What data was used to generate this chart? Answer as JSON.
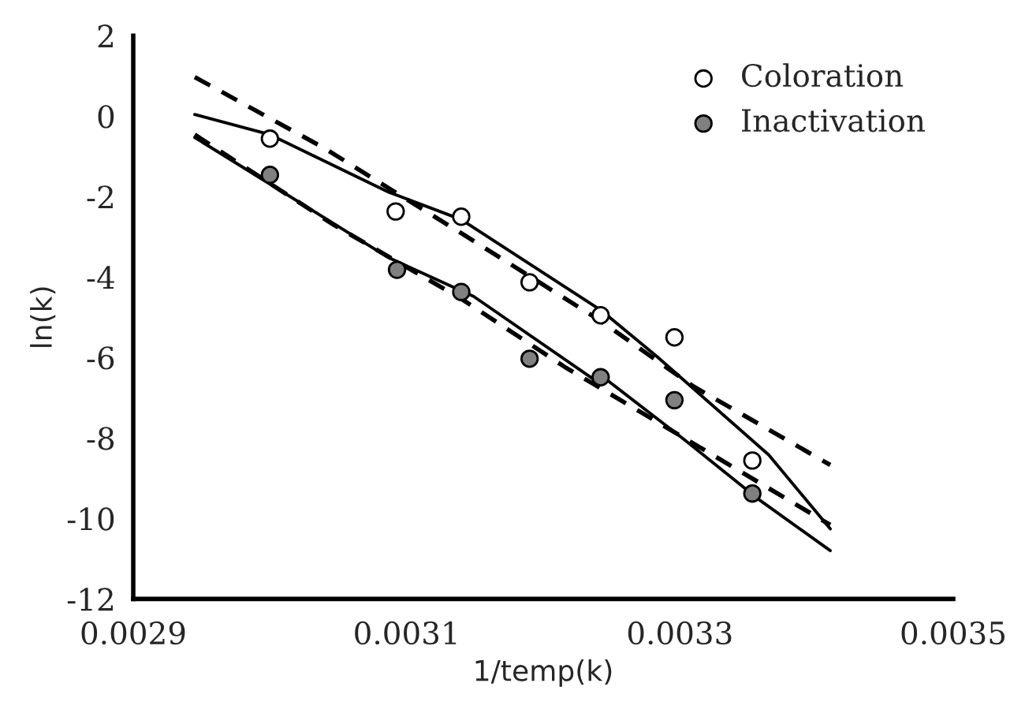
{
  "chart_data": {
    "type": "scatter",
    "xlabel": "1/temp(k)",
    "ylabel": "ln(k)",
    "xlim": [
      0.0029,
      0.0035
    ],
    "xticks": [
      {
        "value": 0.0029,
        "label": "0.0029"
      },
      {
        "value": 0.0031,
        "label": "0.0031"
      },
      {
        "value": 0.0033,
        "label": "0.0033"
      },
      {
        "value": 0.0035,
        "label": "0.0035"
      }
    ],
    "ylim": [
      -12,
      2
    ],
    "yticks": [
      -12,
      -10,
      -8,
      -6,
      -4,
      -2,
      0,
      2
    ],
    "grid": false,
    "legend": "top right",
    "series": [
      {
        "name": "Coloration",
        "marker": "circle",
        "color": "#ffffff",
        "x": [
          0.003,
          0.003092,
          0.00314,
          0.00319,
          0.003242,
          0.003296,
          0.003353
        ],
        "values": [
          -0.56,
          -2.37,
          -2.5,
          -4.13,
          -4.95,
          -5.5,
          -8.56
        ]
      },
      {
        "name": "Inactivation",
        "marker": "circle",
        "color": "#808080",
        "x": [
          0.003,
          0.003093,
          0.00314,
          0.00319,
          0.003242,
          0.003296,
          0.003353
        ],
        "values": [
          -1.46,
          -3.82,
          -4.37,
          -6.03,
          -6.49,
          -7.06,
          -9.38
        ]
      },
      {
        "type": "line",
        "line_style": "solid",
        "color": "#000000",
        "x": [
          0.002945,
          0.003,
          0.003087,
          0.00314,
          0.003242,
          0.003283,
          0.003365,
          0.00341
        ],
        "values": [
          0.04,
          -0.46,
          -1.89,
          -2.57,
          -4.82,
          -5.97,
          -8.42,
          -10.26
        ]
      },
      {
        "type": "line",
        "line_style": "dashed",
        "color": "#000000",
        "x": [
          0.002945,
          0.00304,
          0.00314,
          0.003242,
          0.00331,
          0.00341
        ],
        "values": [
          0.97,
          -0.8,
          -2.91,
          -5.09,
          -6.72,
          -8.67
        ]
      },
      {
        "type": "line",
        "line_style": "solid",
        "color": "#000000",
        "x": [
          0.002945,
          0.003087,
          0.003149,
          0.003236,
          0.003244,
          0.003302,
          0.003357,
          0.00341
        ],
        "values": [
          -0.53,
          -3.52,
          -4.48,
          -6.52,
          -6.49,
          -8.01,
          -9.51,
          -10.8
        ]
      },
      {
        "type": "line",
        "line_style": "dashed",
        "color": "#000000",
        "x": [
          0.002945,
          0.003047,
          0.00314,
          0.003216,
          0.003314,
          0.00341
        ],
        "values": [
          -0.46,
          -2.71,
          -4.54,
          -6.24,
          -8.22,
          -10.16
        ]
      }
    ]
  }
}
